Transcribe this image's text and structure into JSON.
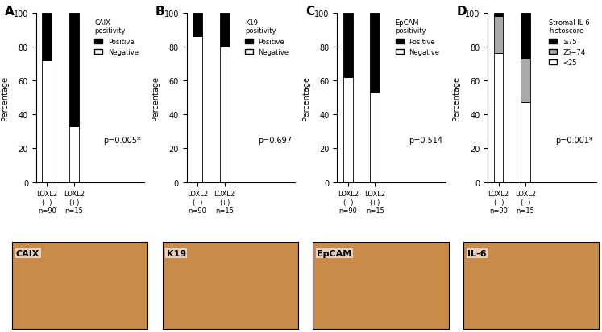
{
  "chart_data": [
    {
      "type": "bar",
      "stacked": true,
      "panel": "A",
      "ylabel": "Percentage",
      "categories": [
        "LOXL2\n(−)\nn=90",
        "LOXL2\n(+)\nn=15"
      ],
      "series": [
        {
          "name": "Negative",
          "color": "#ffffff",
          "values": [
            72,
            33
          ]
        },
        {
          "name": "Positive",
          "color": "#000000",
          "values": [
            28,
            67
          ]
        }
      ],
      "legend_title": "CAIX\npositivity",
      "legend": "upper right",
      "annotation": "p=0.005*",
      "image_label": "CAIX",
      "ylim": [
        0,
        100
      ],
      "yticks": [
        0,
        20,
        40,
        60,
        80,
        100
      ]
    },
    {
      "type": "bar",
      "stacked": true,
      "panel": "B",
      "ylabel": "Percentage",
      "categories": [
        "LOXL2\n(−)\nn=90",
        "LOXL2\n(+)\nn=15"
      ],
      "series": [
        {
          "name": "Negative",
          "color": "#ffffff",
          "values": [
            86,
            80
          ]
        },
        {
          "name": "Positive",
          "color": "#000000",
          "values": [
            14,
            20
          ]
        }
      ],
      "legend_title": "K19\npositivity",
      "legend": "upper right",
      "annotation": "p=0.697",
      "image_label": "K19",
      "ylim": [
        0,
        100
      ],
      "yticks": [
        0,
        20,
        40,
        60,
        80,
        100
      ]
    },
    {
      "type": "bar",
      "stacked": true,
      "panel": "C",
      "ylabel": "Percentage",
      "categories": [
        "LOXL2\n(−)\nn=90",
        "LOXL2\n(+)\nn=15"
      ],
      "series": [
        {
          "name": "Negative",
          "color": "#ffffff",
          "values": [
            62,
            53
          ]
        },
        {
          "name": "Positive",
          "color": "#000000",
          "values": [
            38,
            47
          ]
        }
      ],
      "legend_title": "EpCAM\npositivity",
      "legend": "upper right",
      "annotation": "p=0.514",
      "image_label": "EpCAM",
      "ylim": [
        0,
        100
      ],
      "yticks": [
        0,
        20,
        40,
        60,
        80,
        100
      ]
    },
    {
      "type": "bar",
      "stacked": true,
      "panel": "D",
      "ylabel": "Percentage",
      "categories": [
        "LOXL2\n(−)\nn=90",
        "LOXL2\n(+)\nn=15"
      ],
      "series": [
        {
          "name": "<25",
          "color": "#ffffff",
          "values": [
            76,
            47
          ]
        },
        {
          "name": "25−74",
          "color": "#aaaaaa",
          "values": [
            22,
            26
          ]
        },
        {
          "name": "≥75",
          "color": "#000000",
          "values": [
            2,
            27
          ]
        }
      ],
      "legend_title": "Stromal IL-6\nhistoscore",
      "legend": "upper right",
      "annotation": "p=0.001*",
      "image_label": "IL-6",
      "ylim": [
        0,
        100
      ],
      "yticks": [
        0,
        20,
        40,
        60,
        80,
        100
      ]
    }
  ]
}
